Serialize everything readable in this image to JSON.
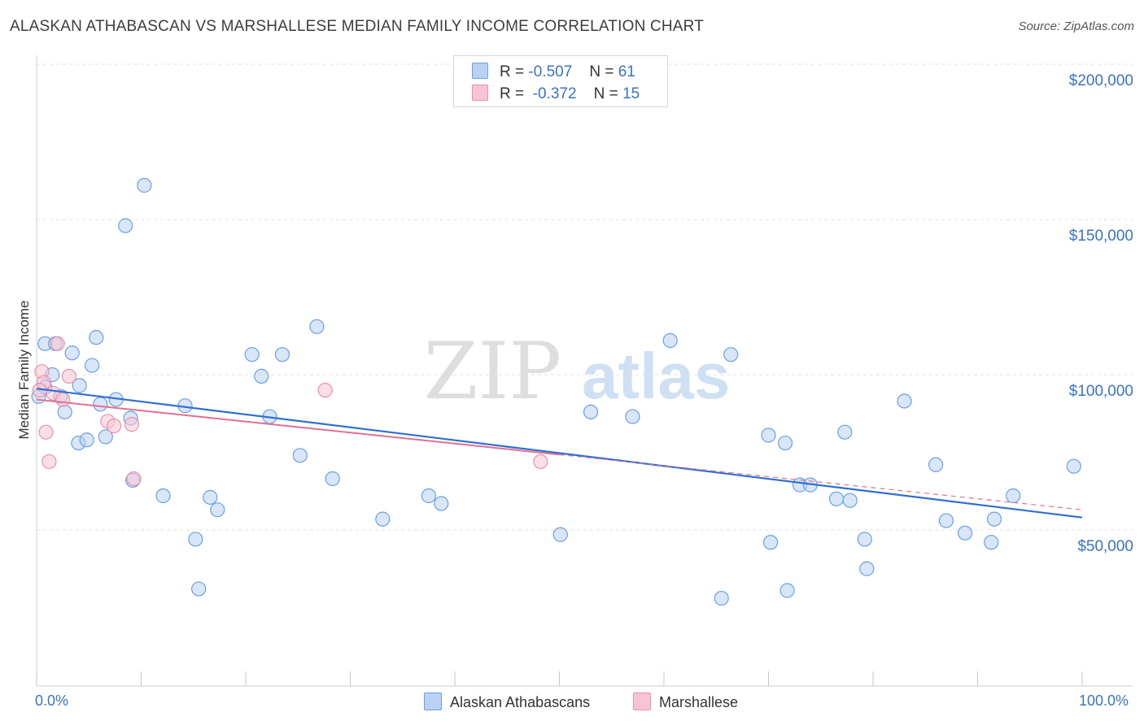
{
  "chart_data": {
    "type": "scatter",
    "title": "ALASKAN ATHABASCAN VS MARSHALLESE MEDIAN FAMILY INCOME CORRELATION CHART",
    "source": "Source: ZipAtlas.com",
    "xlabel": "",
    "ylabel": "Median Family Income",
    "xlim": [
      0,
      100
    ],
    "ylim": [
      0,
      205000
    ],
    "x_tick_labels": {
      "left": "0.0%",
      "right": "100.0%"
    },
    "y_ticks": [
      {
        "value": 50000,
        "label": "$50,000"
      },
      {
        "value": 100000,
        "label": "$100,000"
      },
      {
        "value": 150000,
        "label": "$150,000"
      },
      {
        "value": 200000,
        "label": "$200,000"
      }
    ],
    "watermark": {
      "part1": "ZIP",
      "part2": "atlas"
    },
    "legend": {
      "r_label": "R =",
      "n_label": "N =",
      "rows": [
        {
          "r": "-0.507",
          "n": "61"
        },
        {
          "r": "-0.372",
          "n": "15"
        }
      ]
    },
    "series": [
      {
        "name": "Alaskan Athabascans",
        "color": "#6aa0e0",
        "fill": "#b9d2f3",
        "line_color": "#2f6fd0",
        "trend": {
          "x0": 0,
          "y0": 95500,
          "x1": 100,
          "y1": 54000
        },
        "points": [
          [
            0.2,
            93000
          ],
          [
            0.8,
            96000
          ],
          [
            0.8,
            110000
          ],
          [
            1.5,
            100000
          ],
          [
            1.8,
            110000
          ],
          [
            2.3,
            93000
          ],
          [
            2.7,
            88000
          ],
          [
            3.4,
            107000
          ],
          [
            4.0,
            78000
          ],
          [
            4.1,
            96500
          ],
          [
            4.8,
            79000
          ],
          [
            5.3,
            103000
          ],
          [
            5.7,
            112000
          ],
          [
            6.1,
            90500
          ],
          [
            6.6,
            80000
          ],
          [
            7.6,
            92000
          ],
          [
            8.5,
            148000
          ],
          [
            9.0,
            86000
          ],
          [
            9.2,
            66000
          ],
          [
            10.3,
            161000
          ],
          [
            12.1,
            61000
          ],
          [
            14.2,
            90000
          ],
          [
            15.2,
            47000
          ],
          [
            15.5,
            31000
          ],
          [
            16.6,
            60500
          ],
          [
            17.3,
            56500
          ],
          [
            20.6,
            106500
          ],
          [
            21.5,
            99500
          ],
          [
            22.3,
            86500
          ],
          [
            23.5,
            106500
          ],
          [
            25.2,
            74000
          ],
          [
            26.8,
            115500
          ],
          [
            28.3,
            66500
          ],
          [
            33.1,
            53500
          ],
          [
            37.5,
            61000
          ],
          [
            38.7,
            58500
          ],
          [
            50.1,
            48500
          ],
          [
            53.0,
            88000
          ],
          [
            57.0,
            86500
          ],
          [
            60.6,
            111000
          ],
          [
            65.5,
            28000
          ],
          [
            66.4,
            106500
          ],
          [
            70.0,
            80500
          ],
          [
            70.2,
            46000
          ],
          [
            71.6,
            78000
          ],
          [
            71.8,
            30500
          ],
          [
            73.0,
            64500
          ],
          [
            74.0,
            64500
          ],
          [
            76.5,
            60000
          ],
          [
            77.3,
            81500
          ],
          [
            77.8,
            59500
          ],
          [
            79.2,
            47000
          ],
          [
            79.4,
            37500
          ],
          [
            83.0,
            91500
          ],
          [
            86.0,
            71000
          ],
          [
            87.0,
            53000
          ],
          [
            88.8,
            49000
          ],
          [
            91.3,
            46000
          ],
          [
            91.6,
            53500
          ],
          [
            93.4,
            61000
          ],
          [
            99.2,
            70500
          ]
        ]
      },
      {
        "name": "Marshallese",
        "color": "#ea90ad",
        "fill": "#f8c4d3",
        "line_color": "#e0708f",
        "trend": {
          "x0": 0,
          "y0": 92000,
          "x1": 100,
          "y1": 56500
        },
        "trend_solid_until_x": 50,
        "points": [
          [
            0.5,
            101000
          ],
          [
            0.7,
            97500
          ],
          [
            0.9,
            81500
          ],
          [
            1.2,
            72000
          ],
          [
            1.6,
            94000
          ],
          [
            2.0,
            110000
          ],
          [
            2.5,
            92000
          ],
          [
            3.1,
            99500
          ],
          [
            6.8,
            85000
          ],
          [
            7.4,
            83500
          ],
          [
            9.1,
            84000
          ],
          [
            9.3,
            66500
          ],
          [
            27.6,
            95000
          ],
          [
            48.2,
            72000
          ],
          [
            0.3,
            95000
          ]
        ]
      }
    ]
  },
  "bottom_legend": [
    "Alaskan Athabascans",
    "Marshallese"
  ]
}
